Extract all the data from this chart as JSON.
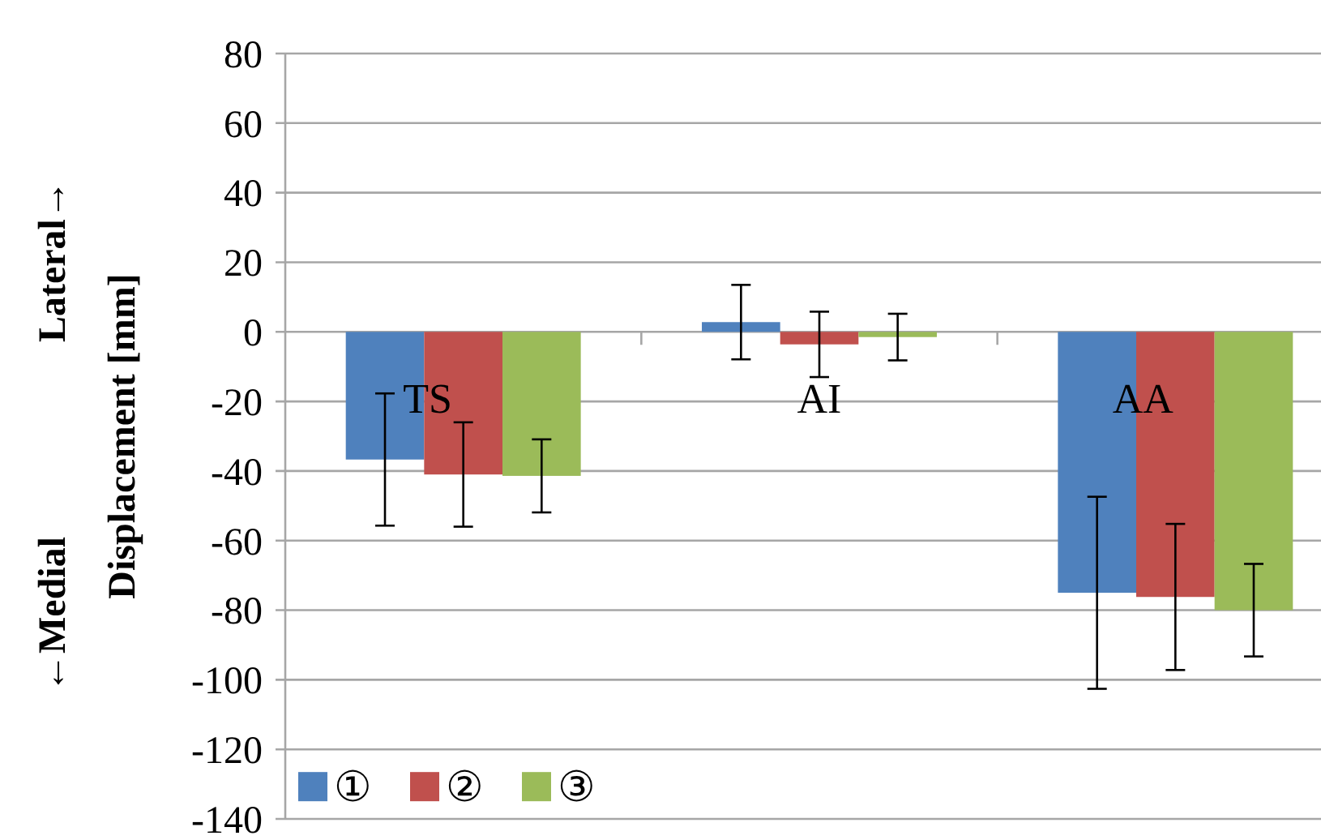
{
  "chart_data": {
    "type": "bar",
    "ylabel": "←Medial                    Lateral→\nDisplacement [mm]",
    "categories": [
      "TS",
      "AI",
      "AA"
    ],
    "series": [
      {
        "name": "①",
        "color": "#4f81bd",
        "values": [
          -36.7,
          2.8,
          -75
        ],
        "errors": [
          19,
          10.7,
          27.6
        ]
      },
      {
        "name": "②",
        "color": "#c0504d",
        "values": [
          -41,
          -3.6,
          -76.2
        ],
        "errors": [
          15,
          9.4,
          21
        ]
      },
      {
        "name": "③",
        "color": "#9bbb59",
        "values": [
          -41.4,
          -1.5,
          -80
        ],
        "errors": [
          10.5,
          6.7,
          13.3
        ]
      }
    ],
    "ylim": [
      -140,
      80
    ],
    "yticks": [
      -140,
      -120,
      -100,
      -80,
      -60,
      -40,
      -20,
      0,
      20,
      40,
      60,
      80
    ],
    "grid": "y",
    "legend": "bottom left"
  }
}
